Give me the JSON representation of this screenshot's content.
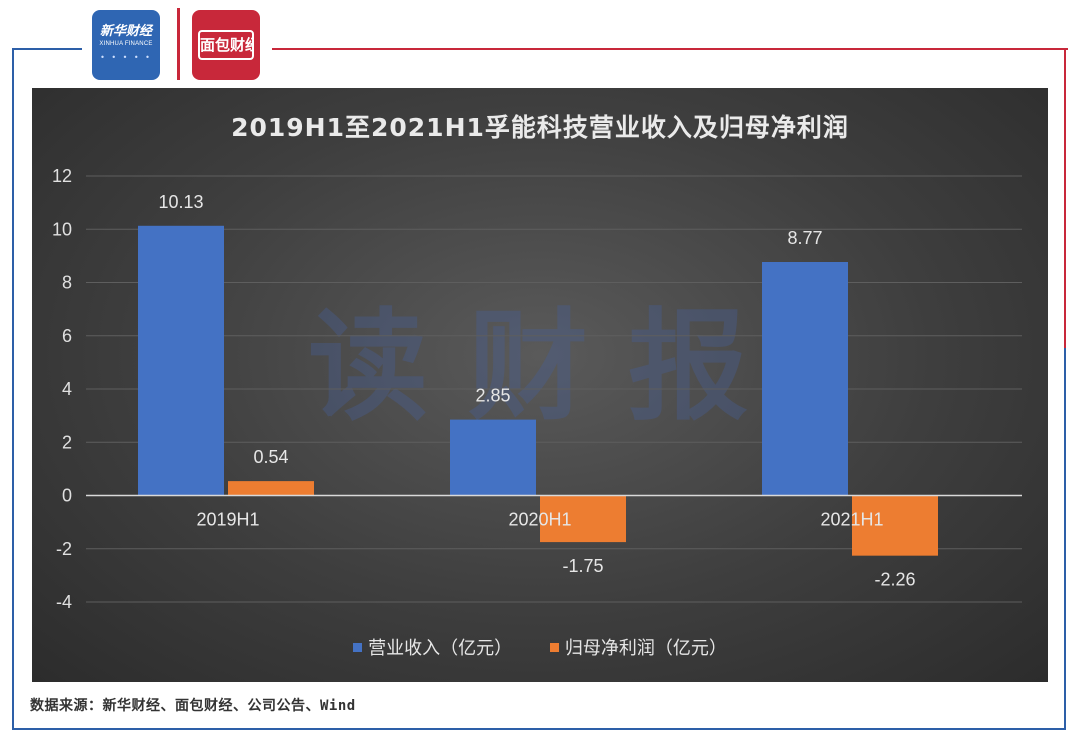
{
  "header": {
    "logo_left_title": "新华财经",
    "logo_left_subtitle": "XINHUA FINANCE",
    "logo_right_text": "面包财经"
  },
  "watermark": "读财报",
  "source_note": "数据来源：新华财经、面包财经、公司公告、Wind",
  "colors": {
    "revenue": "#4472c4",
    "net_profit": "#ed7d31",
    "background": "#3e3e3e"
  },
  "chart_data": {
    "type": "bar",
    "title": "2019H1至2021H1孚能科技营业收入及归母净利润",
    "categories": [
      "2019H1",
      "2020H1",
      "2021H1"
    ],
    "series": [
      {
        "name": "营业收入（亿元）",
        "values": [
          10.13,
          2.85,
          8.77
        ],
        "labels": [
          "10.13",
          "2.85",
          "8.77"
        ]
      },
      {
        "name": "归母净利润（亿元）",
        "values": [
          0.54,
          -1.75,
          -2.26
        ],
        "labels": [
          "0.54",
          "-1.75",
          "-2.26"
        ]
      }
    ],
    "ylim": [
      -4,
      12
    ],
    "yticks": [
      "-4",
      "-2",
      "0",
      "2",
      "4",
      "6",
      "8",
      "10",
      "12"
    ],
    "grid": true,
    "legend_position": "bottom"
  }
}
